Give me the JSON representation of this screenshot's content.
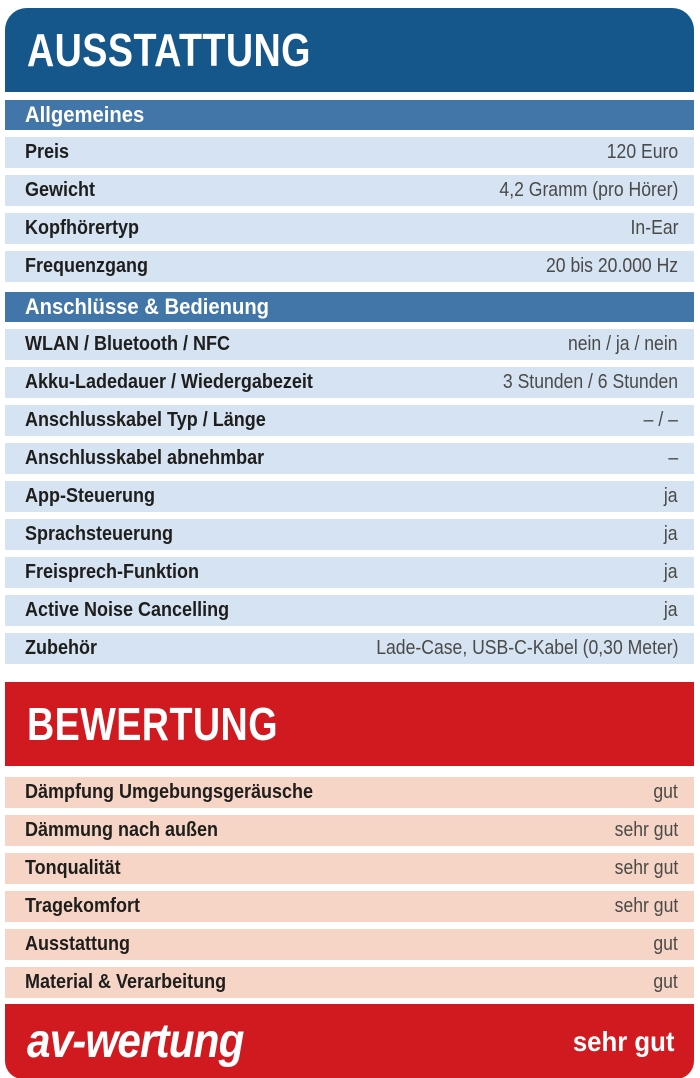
{
  "colors": {
    "header_blue": "#15568b",
    "band_blue": "#4276a8",
    "row_blue": "#d5e3f2",
    "header_red": "#d11a1f",
    "row_pink": "#f7d5c6",
    "label_text": "#1e1e1c",
    "value_text": "#4a4a48",
    "header_text": "#ffffff"
  },
  "ausstattung": {
    "title": "AUSSTATTUNG",
    "sections": [
      {
        "heading": "Allgemeines",
        "rows": [
          {
            "label": "Preis",
            "value": "120 Euro"
          },
          {
            "label": "Gewicht",
            "value": "4,2 Gramm (pro Hörer)"
          },
          {
            "label": "Kopfhörertyp",
            "value": "In-Ear"
          },
          {
            "label": "Frequenzgang",
            "value": "20 bis 20.000 Hz"
          }
        ]
      },
      {
        "heading": "Anschlüsse & Bedienung",
        "rows": [
          {
            "label": "WLAN / Bluetooth / NFC",
            "value": "nein / ja / nein"
          },
          {
            "label": "Akku-Ladedauer / Wiedergabezeit",
            "value": "3 Stunden / 6 Stunden"
          },
          {
            "label": "Anschlusskabel Typ / Länge",
            "value": "– / –"
          },
          {
            "label": "Anschlusskabel abnehmbar",
            "value": "–"
          },
          {
            "label": "App-Steuerung",
            "value": "ja"
          },
          {
            "label": "Sprachsteuerung",
            "value": "ja"
          },
          {
            "label": "Freisprech-Funktion",
            "value": "ja"
          },
          {
            "label": "Active Noise Cancelling",
            "value": "ja"
          },
          {
            "label": "Zubehör",
            "value": "Lade-Case, USB-C-Kabel (0,30 Meter)"
          }
        ]
      }
    ]
  },
  "bewertung": {
    "title": "BEWERTUNG",
    "rows": [
      {
        "label": "Dämpfung Umgebungsgeräusche",
        "value": "gut"
      },
      {
        "label": "Dämmung nach außen",
        "value": "sehr gut"
      },
      {
        "label": "Tonqualität",
        "value": "sehr gut"
      },
      {
        "label": "Tragekomfort",
        "value": "sehr gut"
      },
      {
        "label": "Ausstattung",
        "value": "gut"
      },
      {
        "label": "Material & Verarbeitung",
        "value": "gut"
      }
    ],
    "footer": {
      "logo": "av-wertung",
      "overall": "sehr gut"
    }
  }
}
